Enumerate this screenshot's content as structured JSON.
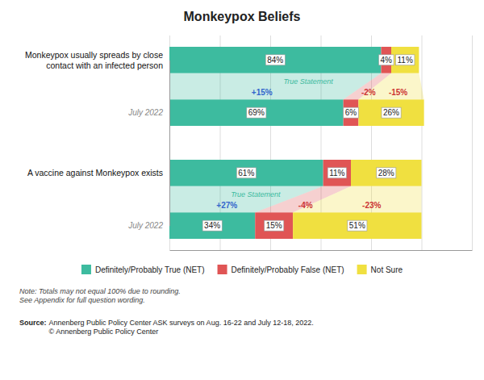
{
  "chart_data": {
    "type": "bar",
    "title": "Monkeypox Beliefs",
    "orientation": "horizontal",
    "stacked": true,
    "data_labels": true,
    "grid": true,
    "legend": "bottom",
    "tick_labels": "y",
    "categories": [
      "Monkeypox usually spreads by close\ncontact with an infected person",
      "July 2022",
      "A vaccine against Monkeypox exists",
      "July 2022"
    ],
    "series": [
      {
        "name": "Definitely/Probably True (NET)",
        "color": "#3dbb9f",
        "values": [
          84,
          69,
          61,
          34
        ],
        "value_labels": [
          "84%",
          "69%",
          "61%",
          "34%"
        ]
      },
      {
        "name": "Definitely/Probably False (NET)",
        "color": "#e05555",
        "values": [
          4,
          6,
          11,
          15
        ],
        "value_labels": [
          "4%",
          "6%",
          "11%",
          "15%"
        ]
      },
      {
        "name": "Not Sure",
        "color": "#f0e040",
        "values": [
          11,
          26,
          28,
          51
        ],
        "value_labels": [
          "11%",
          "26%",
          "28%",
          "51%"
        ]
      }
    ],
    "xlim": [
      0,
      120
    ],
    "xticks": [
      0,
      20,
      40,
      60,
      80,
      100,
      120
    ],
    "annotations": [
      {
        "text": "True Statement",
        "color": "#3dbb9f"
      },
      {
        "text": "+15%",
        "color": "#3366cc"
      },
      {
        "text": "-2%",
        "color": "#cc3333"
      },
      {
        "text": "-15%",
        "color": "#cc3333"
      },
      {
        "text": "True Statement",
        "color": "#3dbb9f"
      },
      {
        "text": "+27%",
        "color": "#3366cc"
      },
      {
        "text": "-4%",
        "color": "#cc3333"
      },
      {
        "text": "-23%",
        "color": "#cc3333"
      }
    ],
    "note": "Note: Totals may not equal 100% due to rounding.\nSee Appendix for full question wording.",
    "source": [
      "Source:",
      " Annenberg Public Policy Center ASK surveys on Aug. 16-22 and July 12-18, 2022.\n© Annenberg Public Policy Center"
    ]
  }
}
